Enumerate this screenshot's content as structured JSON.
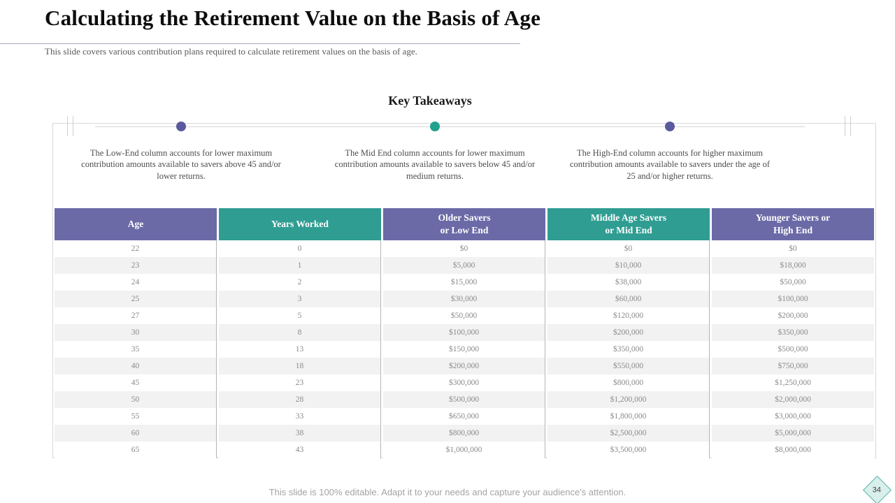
{
  "slide": {
    "title": "Calculating the Retirement Value on the Basis of Age",
    "subtitle": "This slide covers various contribution plans required to calculate retirement values on the basis of age.",
    "section_heading": "Key Takeaways",
    "footer_note": "This slide is 100% editable. Adapt it to your needs and capture your audience's attention.",
    "page_number": "34"
  },
  "takeaways": [
    {
      "dot_color": "#5b599d",
      "text": "The Low-End column accounts for lower maximum contribution amounts available to savers above 45 and/or lower returns."
    },
    {
      "dot_color": "#21a18e",
      "text": "The Mid End column accounts for lower maximum contribution amounts available to savers below 45 and/or medium returns."
    },
    {
      "dot_color": "#5b599d",
      "text": "The High-End column accounts for higher maximum contribution amounts available to savers under the age of 25 and/or higher returns."
    }
  ],
  "colors": {
    "header_purple": "#6b6aa7",
    "header_teal": "#2f9d92",
    "row_stripe": "#f2f2f2"
  },
  "chart_data": {
    "type": "table",
    "columns": [
      {
        "label": "Age",
        "lines": [
          "Age"
        ],
        "header_color": "#6b6aa7"
      },
      {
        "label": "Years Worked",
        "lines": [
          "Years Worked"
        ],
        "header_color": "#2f9d92"
      },
      {
        "label": "Older Savers or Low End",
        "lines": [
          "Older Savers",
          "or Low End"
        ],
        "header_color": "#6b6aa7"
      },
      {
        "label": "Middle Age Savers or Mid End",
        "lines": [
          "Middle Age Savers",
          "or Mid End"
        ],
        "header_color": "#2f9d92"
      },
      {
        "label": "Younger Savers or High End",
        "lines": [
          "Younger Savers or",
          "High End"
        ],
        "header_color": "#6b6aa7"
      }
    ],
    "rows": [
      [
        "22",
        "0",
        "$0",
        "$0",
        "$0"
      ],
      [
        "23",
        "1",
        "$5,000",
        "$10,000",
        "$18,000"
      ],
      [
        "24",
        "2",
        "$15,000",
        "$38,000",
        "$50,000"
      ],
      [
        "25",
        "3",
        "$30,000",
        "$60,000",
        "$100,000"
      ],
      [
        "27",
        "5",
        "$50,000",
        "$120,000",
        "$200,000"
      ],
      [
        "30",
        "8",
        "$100,000",
        "$200,000",
        "$350,000"
      ],
      [
        "35",
        "13",
        "$150,000",
        "$350,000",
        "$500,000"
      ],
      [
        "40",
        "18",
        "$200,000",
        "$550,000",
        "$750,000"
      ],
      [
        "45",
        "23",
        "$300,000",
        "$800,000",
        "$1,250,000"
      ],
      [
        "50",
        "28",
        "$500,000",
        "$1,200,000",
        "$2,000,000"
      ],
      [
        "55",
        "33",
        "$650,000",
        "$1,800,000",
        "$3,000,000"
      ],
      [
        "60",
        "38",
        "$800,000",
        "$2,500,000",
        "$5,000,000"
      ],
      [
        "65",
        "43",
        "$1,000,000",
        "$3,500,000",
        "$8,000,000"
      ]
    ]
  }
}
